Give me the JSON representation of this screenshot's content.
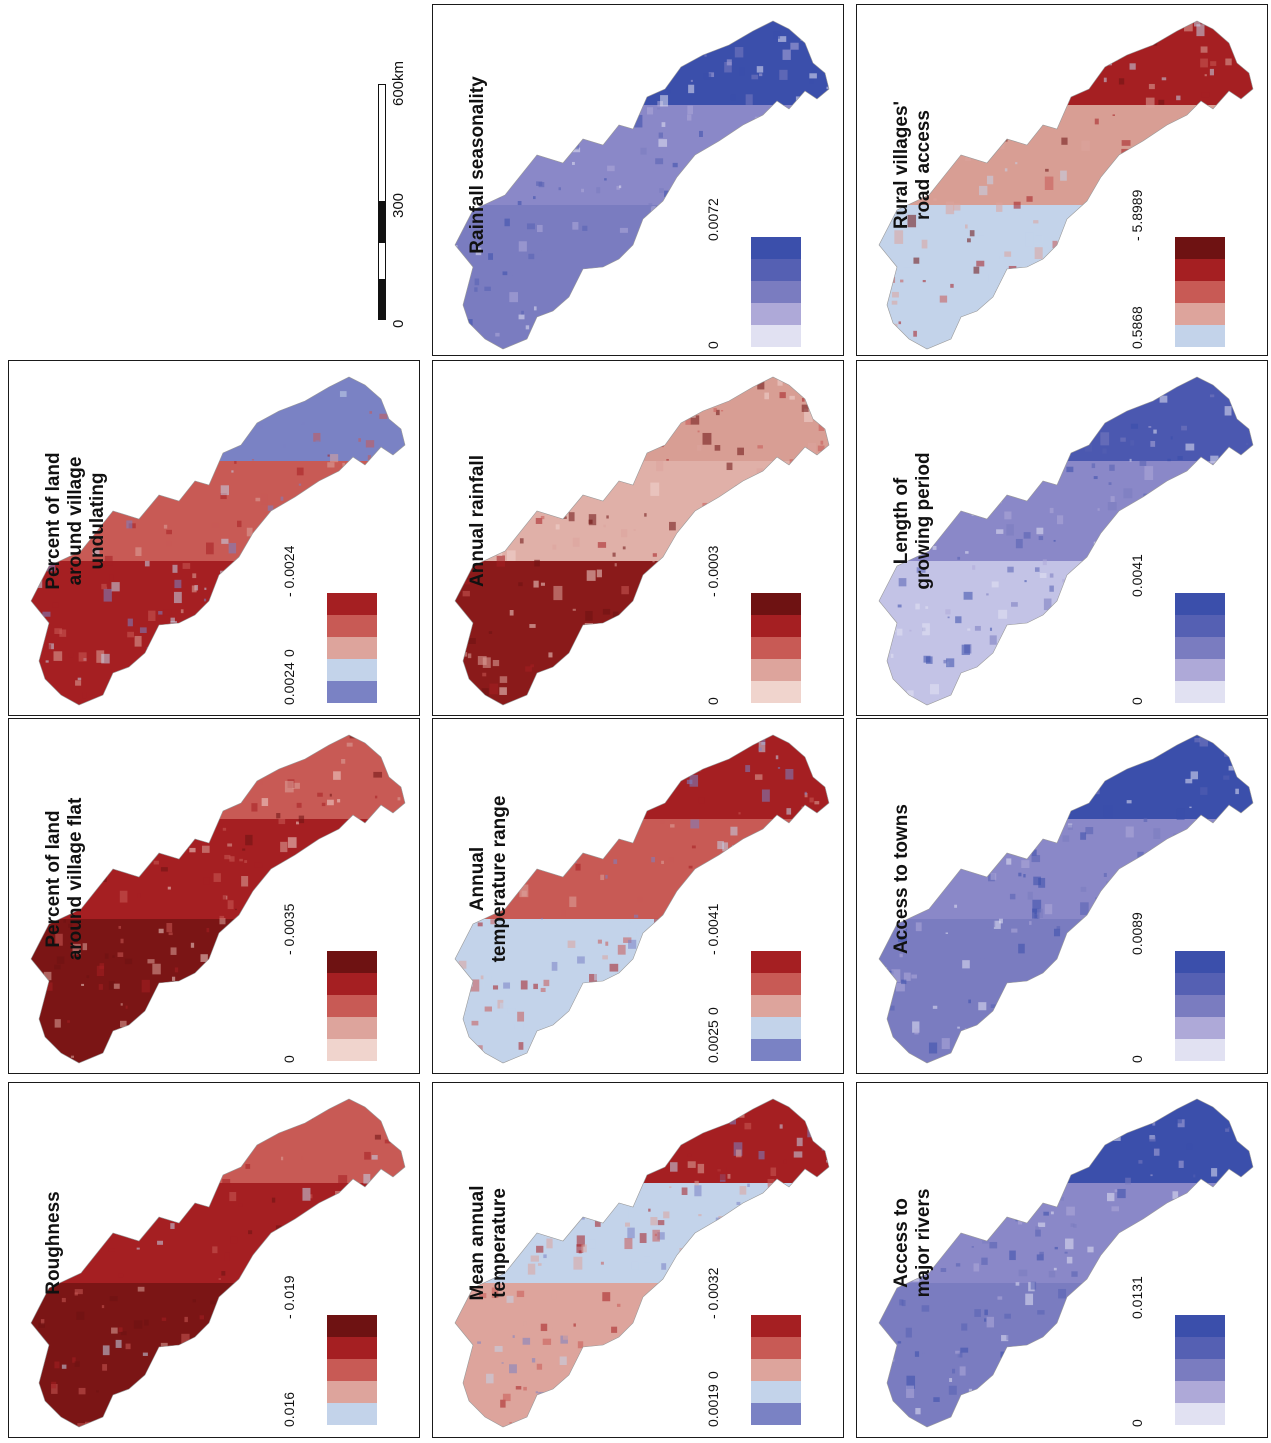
{
  "scale_bar": {
    "labels": [
      "0",
      "300",
      "600km"
    ]
  },
  "colors": {
    "red_ramp": [
      "#6e1212",
      "#a51f22",
      "#c85a55",
      "#dda49c",
      "#f0d4cd"
    ],
    "diverging": [
      "#a51f22",
      "#c85a55",
      "#dda49c",
      "#c3d3ea",
      "#7a82c4"
    ],
    "blue_ramp": [
      "#3b4fab",
      "#5560b3",
      "#7a7cc0",
      "#aea9d8",
      "#e1e1f2"
    ],
    "road_ramp": [
      "#6e1212",
      "#a51f22",
      "#c85a55",
      "#dda49c",
      "#c3d3ea"
    ]
  },
  "panels": [
    {
      "id": "roughness",
      "title": [
        "Roughness"
      ],
      "legend_top": "- 0.019",
      "legend_bottom": "0.016",
      "ramp": "red_div",
      "style": "red"
    },
    {
      "id": "flat",
      "title": [
        "Percent of land",
        "around village flat"
      ],
      "legend_top": "- 0.0035",
      "legend_bottom": "0",
      "ramp": "red_ramp",
      "style": "red"
    },
    {
      "id": "undulating",
      "title": [
        "Percent of land",
        "around village",
        "undulating"
      ],
      "legend_top": "- 0.0024",
      "legend_mid": "0",
      "legend_bottom": "0.0024",
      "ramp": "diverging",
      "style": "redblue"
    },
    {
      "id": "mean_temp",
      "title": [
        "Mean annual",
        "temperature"
      ],
      "legend_top": "- 0.0032",
      "legend_mid": "0",
      "legend_bottom": "0.0019",
      "ramp": "diverging",
      "style": "bluered"
    },
    {
      "id": "temp_range",
      "title": [
        "Annual",
        "temperature range"
      ],
      "legend_top": "- 0.0041",
      "legend_mid": "0",
      "legend_bottom": "0.0025",
      "ramp": "diverging",
      "style": "mixed"
    },
    {
      "id": "annual_rain",
      "title": [
        "Annual rainfall"
      ],
      "legend_top": "- 0.0003",
      "legend_bottom": "0",
      "ramp": "red_ramp",
      "style": "pink"
    },
    {
      "id": "rain_season",
      "title": [
        "Rainfall seasonality"
      ],
      "legend_top": "0.0072",
      "legend_bottom": "0",
      "ramp": "blue_ramp",
      "style": "blue"
    },
    {
      "id": "rivers",
      "title": [
        "Access to",
        "major rivers"
      ],
      "legend_top": "0.0131",
      "legend_bottom": "0",
      "ramp": "blue_ramp",
      "style": "blue"
    },
    {
      "id": "towns",
      "title": [
        "Access to towns"
      ],
      "legend_top": "0.0089",
      "legend_bottom": "0",
      "ramp": "blue_ramp",
      "style": "blue"
    },
    {
      "id": "growing",
      "title": [
        "Length of",
        "growing period"
      ],
      "legend_top": "0.0041",
      "legend_bottom": "0",
      "ramp": "blue_ramp",
      "style": "lightblue"
    },
    {
      "id": "road",
      "title": [
        "Rural villages'",
        "road access"
      ],
      "legend_top": "- 5.8989",
      "legend_bottom": "0.5868",
      "ramp": "road_ramp",
      "style": "road"
    }
  ]
}
